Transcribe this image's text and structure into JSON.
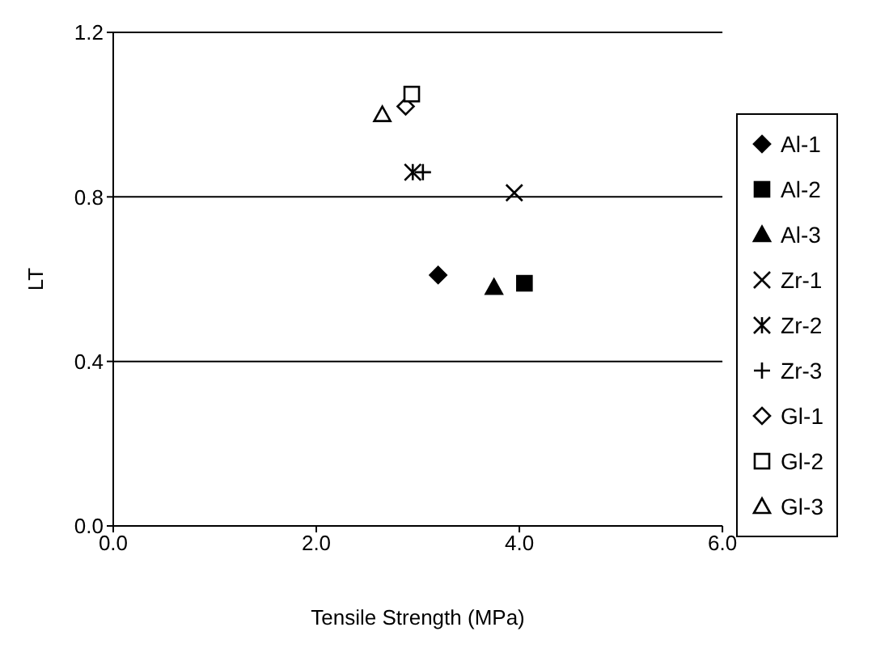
{
  "chart_data": {
    "type": "scatter",
    "xlabel": "Tensile Strength (MPa)",
    "ylabel": "LT",
    "xlim": [
      0,
      6
    ],
    "ylim": [
      0,
      1.2
    ],
    "xticks": [
      {
        "value": 0,
        "label": "0.0"
      },
      {
        "value": 2,
        "label": "2.0"
      },
      {
        "value": 4,
        "label": "4.0"
      },
      {
        "value": 6,
        "label": "6.0"
      }
    ],
    "yticks": [
      {
        "value": 0,
        "label": "0.0"
      },
      {
        "value": 0.4,
        "label": "0.4"
      },
      {
        "value": 0.8,
        "label": "0.8"
      },
      {
        "value": 1.2,
        "label": "1.2"
      }
    ],
    "grid": "y",
    "legend": "right",
    "series": [
      {
        "name": "Al-1",
        "color": "#000000",
        "marker": "diamond",
        "x": [
          3.2
        ],
        "values": [
          0.61
        ]
      },
      {
        "name": "Al-2",
        "color": "#000000",
        "marker": "square",
        "x": [
          4.05
        ],
        "values": [
          0.59
        ]
      },
      {
        "name": "Al-3",
        "color": "#000000",
        "marker": "triangle",
        "x": [
          3.75
        ],
        "values": [
          0.58
        ]
      },
      {
        "name": "Zr-1",
        "color": "#000000",
        "marker": "cross",
        "x": [
          3.95
        ],
        "values": [
          0.81
        ]
      },
      {
        "name": "Zr-2",
        "color": "#000000",
        "marker": "cross",
        "x": [
          2.95
        ],
        "values": [
          0.86
        ]
      },
      {
        "name": "Zr-3",
        "color": "#000000",
        "marker": "cross",
        "x": [
          3.05
        ],
        "values": [
          0.86
        ]
      },
      {
        "name": "Gl-1",
        "color": "#ffffff",
        "marker": "diamond",
        "x": [
          2.88
        ],
        "values": [
          1.02
        ]
      },
      {
        "name": "Gl-2",
        "color": "#ffffff",
        "marker": "square",
        "x": [
          2.94
        ],
        "values": [
          1.05
        ]
      },
      {
        "name": "Gl-3",
        "color": "#ffffff",
        "marker": "triangle",
        "x": [
          2.65
        ],
        "values": [
          1.0
        ]
      }
    ]
  }
}
